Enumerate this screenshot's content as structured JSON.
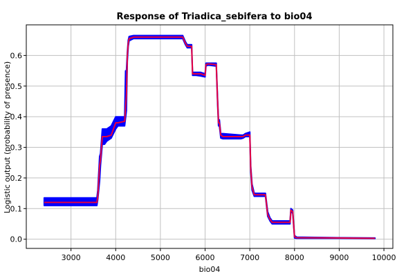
{
  "chart_data": {
    "type": "line",
    "title": "Response of Triadica_sebifera to bio04",
    "xlabel": "bio04",
    "ylabel": "Logistic output (probability of presence)",
    "xlim": [
      2000,
      10200
    ],
    "ylim": [
      -0.03,
      0.7
    ],
    "x_ticks": [
      3000,
      4000,
      5000,
      6000,
      7000,
      8000,
      9000,
      10000
    ],
    "y_ticks": [
      0.0,
      0.1,
      0.2,
      0.3,
      0.4,
      0.5,
      0.6
    ],
    "x_tick_labels": [
      "3000",
      "4000",
      "5000",
      "6000",
      "7000",
      "8000",
      "9000",
      "10000"
    ],
    "y_tick_labels": [
      "0.0",
      "0.1",
      "0.2",
      "0.3",
      "0.4",
      "0.5",
      "0.6"
    ],
    "grid": true,
    "colors": {
      "mean": "#e8003c",
      "band": "#0000ff",
      "grid": "#c0c0c0"
    },
    "series": [
      {
        "role": "mean",
        "x": [
          2400,
          3580,
          3600,
          3640,
          3660,
          3700,
          3750,
          3800,
          3900,
          4000,
          4050,
          4200,
          4240,
          4260,
          4280,
          4300,
          4400,
          4500,
          5000,
          5500,
          5560,
          5600,
          5700,
          5720,
          5800,
          5900,
          6000,
          6020,
          6050,
          6100,
          6250,
          6280,
          6300,
          6320,
          6350,
          6400,
          6800,
          6850,
          6900,
          7000,
          7020,
          7050,
          7100,
          7200,
          7350,
          7400,
          7450,
          7500,
          7600,
          7800,
          7900,
          7920,
          7960,
          8000,
          8050,
          9000,
          9800
        ],
        "y": [
          0.12,
          0.12,
          0.14,
          0.24,
          0.26,
          0.335,
          0.335,
          0.335,
          0.34,
          0.38,
          0.38,
          0.385,
          0.47,
          0.6,
          0.64,
          0.655,
          0.66,
          0.66,
          0.66,
          0.66,
          0.64,
          0.63,
          0.63,
          0.54,
          0.54,
          0.54,
          0.535,
          0.57,
          0.572,
          0.572,
          0.57,
          0.45,
          0.38,
          0.38,
          0.34,
          0.335,
          0.335,
          0.335,
          0.34,
          0.34,
          0.23,
          0.17,
          0.145,
          0.145,
          0.145,
          0.08,
          0.065,
          0.055,
          0.055,
          0.055,
          0.055,
          0.095,
          0.09,
          0.008,
          0.005,
          0.004,
          0.003
        ]
      },
      {
        "role": "band-upper",
        "x": [
          2400,
          3580,
          3600,
          3640,
          3660,
          3700,
          3750,
          3800,
          3900,
          4000,
          4050,
          4200,
          4220,
          4240,
          4260,
          4280,
          4300,
          4400,
          4500,
          5000,
          5500,
          5560,
          5600,
          5700,
          5720,
          5800,
          5900,
          6000,
          6020,
          6050,
          6100,
          6250,
          6280,
          6300,
          6320,
          6350,
          6400,
          6800,
          6850,
          6900,
          7000,
          7020,
          7050,
          7100,
          7200,
          7350,
          7400,
          7450,
          7500,
          7600,
          7800,
          7900,
          7920,
          7960,
          8000,
          8050,
          9000,
          9800
        ],
        "y": [
          0.135,
          0.135,
          0.16,
          0.27,
          0.28,
          0.36,
          0.36,
          0.36,
          0.37,
          0.4,
          0.4,
          0.4,
          0.55,
          0.55,
          0.61,
          0.65,
          0.662,
          0.665,
          0.665,
          0.665,
          0.665,
          0.645,
          0.635,
          0.635,
          0.545,
          0.545,
          0.545,
          0.54,
          0.575,
          0.575,
          0.575,
          0.575,
          0.46,
          0.39,
          0.39,
          0.345,
          0.345,
          0.34,
          0.34,
          0.345,
          0.35,
          0.24,
          0.18,
          0.15,
          0.15,
          0.15,
          0.09,
          0.07,
          0.06,
          0.06,
          0.06,
          0.06,
          0.1,
          0.095,
          0.012,
          0.007,
          0.005,
          0.004
        ]
      },
      {
        "role": "band-lower",
        "x": [
          2400,
          3580,
          3600,
          3640,
          3660,
          3700,
          3750,
          3800,
          3900,
          4000,
          4050,
          4200,
          4240,
          4260,
          4280,
          4300,
          4400,
          4500,
          5000,
          5500,
          5560,
          5600,
          5700,
          5720,
          5800,
          5900,
          6000,
          6020,
          6050,
          6100,
          6250,
          6280,
          6300,
          6320,
          6350,
          6400,
          6800,
          6850,
          6900,
          7000,
          7020,
          7050,
          7100,
          7200,
          7350,
          7400,
          7450,
          7500,
          7600,
          7800,
          7900,
          7920,
          7960,
          8000,
          8050,
          9000,
          9800
        ],
        "y": [
          0.11,
          0.11,
          0.13,
          0.19,
          0.24,
          0.31,
          0.31,
          0.32,
          0.33,
          0.36,
          0.37,
          0.37,
          0.42,
          0.58,
          0.63,
          0.648,
          0.655,
          0.655,
          0.655,
          0.655,
          0.635,
          0.625,
          0.625,
          0.535,
          0.535,
          0.533,
          0.53,
          0.565,
          0.568,
          0.568,
          0.565,
          0.44,
          0.37,
          0.37,
          0.33,
          0.328,
          0.328,
          0.33,
          0.335,
          0.335,
          0.22,
          0.16,
          0.14,
          0.14,
          0.14,
          0.075,
          0.06,
          0.05,
          0.05,
          0.05,
          0.05,
          0.09,
          0.085,
          0.004,
          0.003,
          0.003,
          0.002
        ]
      }
    ]
  }
}
